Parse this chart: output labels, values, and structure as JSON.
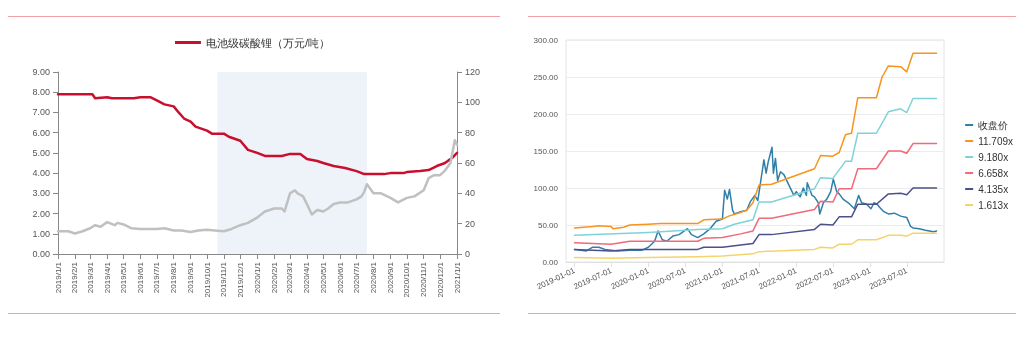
{
  "chart_data": [
    {
      "type": "line",
      "legend": "top",
      "marker": "none",
      "grid": false,
      "x": [
        "2019-01-01",
        "2019-03-05",
        "2019-03-10",
        "2019-04-01",
        "2019-04-10",
        "2019-05-20",
        "2019-06-01",
        "2019-06-20",
        "2019-07-01",
        "2019-07-15",
        "2019-08-01",
        "2019-08-10",
        "2019-08-20",
        "2019-09-01",
        "2019-09-10",
        "2019-10-01",
        "2019-10-10",
        "2019-11-01",
        "2019-11-10",
        "2019-12-01",
        "2019-12-15",
        "2020-01-01",
        "2020-01-15",
        "2020-02-15",
        "2020-03-01",
        "2020-03-20",
        "2020-04-01",
        "2020-04-20",
        "2020-05-01",
        "2020-05-20",
        "2020-06-10",
        "2020-07-01",
        "2020-07-15",
        "2020-08-20",
        "2020-09-01",
        "2020-09-25",
        "2020-10-01",
        "2020-10-25",
        "2020-11-10",
        "2020-11-25",
        "2020-12-10",
        "2020-12-25",
        "2021-01-01"
      ],
      "xlim": [
        "2019-01-01",
        "2021-01-01"
      ],
      "xticks": [
        {
          "value": "2019-01-01",
          "label": "2019/1/1"
        },
        {
          "value": "2019-02-01",
          "label": "2019/2/1"
        },
        {
          "value": "2019-03-01",
          "label": "2019/3/1"
        },
        {
          "value": "2019-04-01",
          "label": "2019/4/1"
        },
        {
          "value": "2019-05-01",
          "label": "2019/5/1"
        },
        {
          "value": "2019-06-01",
          "label": "2019/6/1"
        },
        {
          "value": "2019-07-01",
          "label": "2019/7/1"
        },
        {
          "value": "2019-08-01",
          "label": "2019/8/1"
        },
        {
          "value": "2019-09-01",
          "label": "2019/9/1"
        },
        {
          "value": "2019-10-01",
          "label": "2019/10/1"
        },
        {
          "value": "2019-11-01",
          "label": "2019/11/1"
        },
        {
          "value": "2019-12-01",
          "label": "2019/12/1"
        },
        {
          "value": "2020-01-01",
          "label": "2020/1/1"
        },
        {
          "value": "2020-02-01",
          "label": "2020/2/1"
        },
        {
          "value": "2020-03-01",
          "label": "2020/3/1"
        },
        {
          "value": "2020-04-01",
          "label": "2020/4/1"
        },
        {
          "value": "2020-05-01",
          "label": "2020/5/1"
        },
        {
          "value": "2020-06-01",
          "label": "2020/6/1"
        },
        {
          "value": "2020-07-01",
          "label": "2020/7/1"
        },
        {
          "value": "2020-08-01",
          "label": "2020/8/1"
        },
        {
          "value": "2020-09-01",
          "label": "2020/9/1"
        },
        {
          "value": "2020-10-01",
          "label": "2020/10/1"
        },
        {
          "value": "2020-11-01",
          "label": "2020/11/1"
        },
        {
          "value": "2020-12-01",
          "label": "2020/12/1"
        },
        {
          "value": "2021-01-01",
          "label": "2021/1/1"
        }
      ],
      "ylim": [
        0,
        9
      ],
      "yticks": [
        {
          "value": 0,
          "label": "0.00"
        },
        {
          "value": 1,
          "label": "1.00"
        },
        {
          "value": 2,
          "label": "2.00"
        },
        {
          "value": 3,
          "label": "3.00"
        },
        {
          "value": 4,
          "label": "4.00"
        },
        {
          "value": 5,
          "label": "5.00"
        },
        {
          "value": 6,
          "label": "6.00"
        },
        {
          "value": 7,
          "label": "7.00"
        },
        {
          "value": 8,
          "label": "8.00"
        },
        {
          "value": 9,
          "label": "9.00"
        }
      ],
      "y2lim": [
        0,
        120
      ],
      "y2ticks": [
        0,
        20,
        40,
        60,
        80,
        100,
        120
      ],
      "bands": [
        {
          "axis": "x",
          "from": "2019-10-20",
          "to": "2020-07-20",
          "color": "#eef3fa"
        }
      ],
      "series": [
        {
          "name": "电池级碳酸锂（万元/吨）",
          "color": "#c8102e",
          "values": [
            7.9,
            7.9,
            7.7,
            7.75,
            7.7,
            7.7,
            7.75,
            7.75,
            7.6,
            7.4,
            7.3,
            7.0,
            6.7,
            6.55,
            6.3,
            6.1,
            5.95,
            5.95,
            5.8,
            5.6,
            5.15,
            5.0,
            4.85,
            4.85,
            4.95,
            4.95,
            4.7,
            4.6,
            4.5,
            4.35,
            4.25,
            4.1,
            3.95,
            3.95,
            4.0,
            4.0,
            4.05,
            4.1,
            4.15,
            4.35,
            4.5,
            4.8,
            5.0
          ]
        },
        {
          "color": "#c0c0c0",
          "axis": "y2",
          "x": [
            "2019-01-01",
            "2019-01-20",
            "2019-02-01",
            "2019-02-15",
            "2019-03-01",
            "2019-03-10",
            "2019-03-20",
            "2019-04-01",
            "2019-04-15",
            "2019-04-20",
            "2019-05-01",
            "2019-05-15",
            "2019-06-01",
            "2019-07-01",
            "2019-07-15",
            "2019-08-01",
            "2019-08-15",
            "2019-09-01",
            "2019-09-15",
            "2019-10-01",
            "2019-10-15",
            "2019-11-01",
            "2019-11-15",
            "2019-12-01",
            "2019-12-15",
            "2020-01-01",
            "2020-01-15",
            "2020-02-01",
            "2020-02-15",
            "2020-02-20",
            "2020-03-01",
            "2020-03-10",
            "2020-03-15",
            "2020-03-25",
            "2020-04-01",
            "2020-04-10",
            "2020-04-20",
            "2020-05-01",
            "2020-05-10",
            "2020-05-20",
            "2020-06-01",
            "2020-06-15",
            "2020-07-01",
            "2020-07-10",
            "2020-07-15",
            "2020-07-20",
            "2020-08-01",
            "2020-08-15",
            "2020-09-01",
            "2020-09-15",
            "2020-10-01",
            "2020-10-15",
            "2020-11-01",
            "2020-11-10",
            "2020-11-20",
            "2020-12-01",
            "2020-12-10",
            "2020-12-20",
            "2020-12-28",
            "2021-01-01"
          ],
          "values": [
            15,
            15,
            13.5,
            15,
            17,
            19,
            18,
            21,
            19,
            20.5,
            19.5,
            17,
            16.5,
            16.5,
            17,
            15.5,
            15.5,
            14.5,
            15.5,
            16,
            15.5,
            15,
            16.5,
            19,
            20.5,
            24,
            28,
            30,
            30,
            28,
            40,
            42,
            40,
            38,
            33,
            26,
            29,
            28,
            30,
            33,
            34,
            34,
            36,
            38,
            41,
            46,
            40,
            40,
            37,
            34,
            37,
            38,
            42,
            50,
            52,
            52,
            55,
            60,
            75,
            72
          ]
        }
      ]
    },
    {
      "type": "line",
      "legend": "right",
      "marker": "none",
      "grid": "y",
      "xlim": [
        "2018-11-20",
        "2024-01-01"
      ],
      "xticks": [
        "2019-01-01",
        "2019-07-01",
        "2020-01-01",
        "2020-07-01",
        "2021-01-01",
        "2021-07-01",
        "2022-01-01",
        "2022-07-01",
        "2023-01-01",
        "2023-07-01"
      ],
      "ylim": [
        0,
        300
      ],
      "yticks": [
        {
          "value": 0,
          "label": "0.00"
        },
        {
          "value": 50,
          "label": "50.00"
        },
        {
          "value": 100,
          "label": "100.00"
        },
        {
          "value": 150,
          "label": "150.00"
        },
        {
          "value": 200,
          "label": "200.00"
        },
        {
          "value": 250,
          "label": "250.00"
        },
        {
          "value": 300,
          "label": "300.00"
        }
      ],
      "series": [
        {
          "name": "收盘价",
          "color": "#2f7fa8",
          "x": [
            "2019-01-01",
            "2019-03-01",
            "2019-04-01",
            "2019-05-01",
            "2019-06-01",
            "2019-08-01",
            "2019-10-01",
            "2019-12-01",
            "2020-01-01",
            "2020-02-01",
            "2020-02-18",
            "2020-03-10",
            "2020-04-01",
            "2020-05-01",
            "2020-06-01",
            "2020-07-12",
            "2020-08-01",
            "2020-09-01",
            "2020-10-01",
            "2020-11-01",
            "2020-12-01",
            "2021-01-01",
            "2021-01-12",
            "2021-01-25",
            "2021-02-05",
            "2021-02-20",
            "2021-03-01",
            "2021-04-01",
            "2021-05-01",
            "2021-05-20",
            "2021-06-10",
            "2021-06-25",
            "2021-07-25",
            "2021-08-05",
            "2021-08-15",
            "2021-09-03",
            "2021-09-10",
            "2021-09-20",
            "2021-10-01",
            "2021-10-15",
            "2021-11-01",
            "2021-11-15",
            "2021-12-20",
            "2022-01-01",
            "2022-01-20",
            "2022-02-05",
            "2022-02-20",
            "2022-02-24",
            "2022-03-20",
            "2022-04-01",
            "2022-04-20",
            "2022-04-27",
            "2022-05-15",
            "2022-06-01",
            "2022-06-20",
            "2022-07-03",
            "2022-07-20",
            "2022-08-01",
            "2022-08-20",
            "2022-09-15",
            "2022-10-15",
            "2022-11-05",
            "2022-11-20",
            "2022-12-15",
            "2023-01-05",
            "2023-01-20",
            "2023-02-05",
            "2023-02-20",
            "2023-03-10",
            "2023-04-01",
            "2023-05-01",
            "2023-06-01",
            "2023-07-01",
            "2023-07-20",
            "2023-08-01",
            "2023-09-01",
            "2023-10-01",
            "2023-11-10",
            "2023-11-25"
          ],
          "values": [
            17,
            15,
            20,
            20,
            17,
            15,
            16,
            16,
            20,
            28,
            42,
            30,
            28,
            35,
            37,
            45,
            37,
            33,
            38,
            45,
            55,
            58,
            97,
            85,
            98,
            70,
            65,
            68,
            70,
            82,
            90,
            83,
            138,
            120,
            135,
            155,
            120,
            140,
            110,
            122,
            118,
            110,
            90,
            95,
            88,
            100,
            90,
            107,
            90,
            88,
            80,
            65,
            80,
            85,
            95,
            112,
            95,
            92,
            85,
            80,
            72,
            90,
            80,
            78,
            72,
            80,
            78,
            73,
            68,
            65,
            66,
            62,
            60,
            48,
            46,
            45,
            43,
            41,
            42
          ]
        },
        {
          "name": "11.709x",
          "color": "#f7941d",
          "x": [
            "2019-01-01",
            "2019-04-01",
            "2019-05-01",
            "2019-07-01",
            "2019-07-10",
            "2019-09-01",
            "2019-10-01",
            "2020-01-01",
            "2020-03-01",
            "2020-09-01",
            "2020-10-01",
            "2021-01-01",
            "2021-02-01",
            "2021-04-01",
            "2021-05-01",
            "2021-06-01",
            "2021-07-01",
            "2021-09-01",
            "2022-04-01",
            "2022-05-01",
            "2022-07-01",
            "2022-08-01",
            "2022-09-01",
            "2022-10-01",
            "2022-11-01",
            "2023-02-01",
            "2023-03-01",
            "2023-04-01",
            "2023-06-01",
            "2023-07-01",
            "2023-08-01",
            "2023-11-25"
          ],
          "values": [
            46,
            48,
            49,
            48,
            45,
            47,
            50,
            51,
            52,
            52,
            57,
            58,
            62,
            67,
            70,
            80,
            104,
            105,
            126,
            144,
            143,
            148,
            172,
            174,
            222,
            222,
            250,
            265,
            264,
            257,
            282,
            282
          ]
        },
        {
          "name": "9.180x",
          "color": "#7fd3d8",
          "x": [
            "2019-01-01",
            "2020-01-01",
            "2020-09-01",
            "2021-01-01",
            "2021-03-01",
            "2021-06-01",
            "2021-07-01",
            "2021-09-01",
            "2022-04-01",
            "2022-05-01",
            "2022-07-01",
            "2022-09-01",
            "2022-10-01",
            "2022-11-01",
            "2023-02-01",
            "2023-04-01",
            "2023-06-01",
            "2023-07-01",
            "2023-08-01",
            "2023-11-25"
          ],
          "values": [
            36,
            40,
            44,
            45,
            51,
            57,
            81,
            81,
            99,
            114,
            113,
            136,
            136,
            174,
            174,
            203,
            207,
            202,
            221,
            221
          ]
        },
        {
          "name": "6.658x",
          "color": "#f06a78",
          "x": [
            "2019-01-01",
            "2019-07-01",
            "2019-10-01",
            "2020-09-01",
            "2020-10-01",
            "2021-01-01",
            "2021-04-01",
            "2021-06-01",
            "2021-07-01",
            "2021-09-01",
            "2022-04-01",
            "2022-05-01",
            "2022-07-01",
            "2022-08-01",
            "2022-10-01",
            "2022-11-01",
            "2023-02-01",
            "2023-04-01",
            "2023-06-01",
            "2023-07-01",
            "2023-08-01",
            "2023-11-25"
          ],
          "values": [
            26,
            24,
            28,
            28,
            32,
            33,
            38,
            42,
            59,
            59,
            71,
            82,
            81,
            99,
            99,
            126,
            126,
            150,
            150,
            147,
            160,
            160
          ]
        },
        {
          "name": "4.135x",
          "color": "#4b4f8a",
          "x": [
            "2019-01-01",
            "2019-07-01",
            "2019-10-01",
            "2020-09-01",
            "2020-10-01",
            "2021-01-01",
            "2021-06-01",
            "2021-07-01",
            "2021-09-01",
            "2022-04-01",
            "2022-05-01",
            "2022-07-01",
            "2022-08-01",
            "2022-10-01",
            "2022-11-01",
            "2023-02-01",
            "2023-04-01",
            "2023-06-01",
            "2023-07-01",
            "2023-08-01",
            "2023-11-25"
          ],
          "values": [
            17,
            15,
            17,
            17,
            20,
            20,
            25,
            37,
            37,
            44,
            51,
            50,
            61,
            61,
            78,
            78,
            92,
            93,
            91,
            100,
            100
          ]
        },
        {
          "name": "1.613x",
          "color": "#f5d36a",
          "x": [
            "2019-01-01",
            "2019-07-01",
            "2020-01-01",
            "2020-09-01",
            "2021-01-01",
            "2021-06-01",
            "2021-07-01",
            "2022-04-01",
            "2022-05-01",
            "2022-07-01",
            "2022-08-01",
            "2022-10-01",
            "2022-11-01",
            "2023-02-01",
            "2023-04-01",
            "2023-06-01",
            "2023-07-01",
            "2023-08-01",
            "2023-11-25"
          ],
          "values": [
            6,
            5,
            6,
            7,
            8,
            11,
            14,
            17,
            20,
            19,
            24,
            24,
            30,
            30,
            36,
            36,
            35,
            39,
            39
          ]
        }
      ]
    }
  ]
}
